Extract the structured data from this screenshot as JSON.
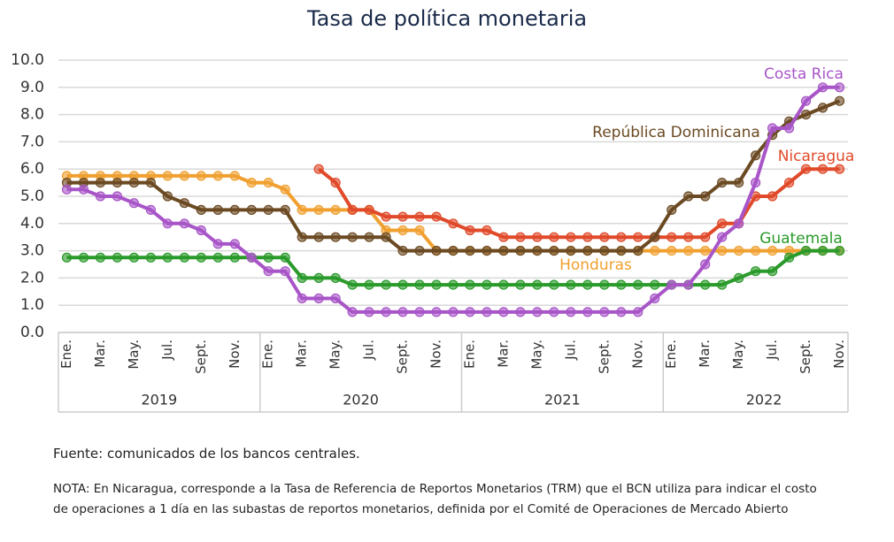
{
  "chart_data": {
    "type": "line",
    "title": "Tasa de política monetaria",
    "categories": [
      "Ene.",
      null,
      "Mar.",
      null,
      "May.",
      null,
      "Jul.",
      null,
      "Sept.",
      null,
      "Nov.",
      null,
      "Ene.",
      null,
      "Mar.",
      null,
      "May.",
      null,
      "Jul.",
      null,
      "Sept.",
      null,
      "Nov.",
      null,
      "Ene.",
      null,
      "Mar.",
      null,
      "May.",
      null,
      "Jul.",
      null,
      "Sept.",
      null,
      "Nov.",
      null,
      "Ene.",
      null,
      "Mar.",
      null,
      "May.",
      null,
      "Jul.",
      null,
      "Sept.",
      null,
      "Nov."
    ],
    "year_groups": [
      "2019",
      "2020",
      "2021",
      "2022"
    ],
    "ylim": [
      0,
      10
    ],
    "yticks": [
      {
        "value": 0,
        "label": "0.0"
      },
      {
        "value": 1,
        "label": "1.0"
      },
      {
        "value": 2,
        "label": "2.0"
      },
      {
        "value": 3,
        "label": "3.0"
      },
      {
        "value": 4,
        "label": "4.0"
      },
      {
        "value": 5,
        "label": "5.0"
      },
      {
        "value": 6,
        "label": "6.0"
      },
      {
        "value": 7,
        "label": "7.0"
      },
      {
        "value": 8,
        "label": "8.0"
      },
      {
        "value": 9,
        "label": "9.0"
      },
      {
        "value": 10,
        "label": "10.0"
      }
    ],
    "grid": true,
    "series": [
      {
        "name": "Honduras",
        "color": "#f0a030",
        "values": [
          5.75,
          5.75,
          5.75,
          5.75,
          5.75,
          5.75,
          5.75,
          5.75,
          5.75,
          5.75,
          5.75,
          5.5,
          5.5,
          5.25,
          4.5,
          4.5,
          4.5,
          4.5,
          4.5,
          3.75,
          3.75,
          3.75,
          3,
          3,
          3,
          3,
          3,
          3,
          3,
          3,
          3,
          3,
          3,
          3,
          3,
          3,
          3,
          3,
          3,
          3,
          3,
          3,
          3,
          3,
          3,
          3,
          3
        ]
      },
      {
        "name": "Nicaragua",
        "color": "#e04a2a",
        "values": [
          null,
          null,
          null,
          null,
          null,
          null,
          null,
          null,
          null,
          null,
          null,
          null,
          null,
          null,
          null,
          6,
          5.5,
          4.5,
          4.5,
          4.25,
          4.25,
          4.25,
          4.25,
          4,
          3.75,
          3.75,
          3.5,
          3.5,
          3.5,
          3.5,
          3.5,
          3.5,
          3.5,
          3.5,
          3.5,
          3.5,
          3.5,
          3.5,
          3.5,
          4,
          4,
          5,
          5,
          5.5,
          6,
          6,
          6
        ]
      },
      {
        "name": "República Dominicana",
        "color": "#6b4a23",
        "values": [
          5.5,
          5.5,
          5.5,
          5.5,
          5.5,
          5.5,
          5,
          4.75,
          4.5,
          4.5,
          4.5,
          4.5,
          4.5,
          4.5,
          3.5,
          3.5,
          3.5,
          3.5,
          3.5,
          3.5,
          3,
          3,
          3,
          3,
          3,
          3,
          3,
          3,
          3,
          3,
          3,
          3,
          3,
          3,
          3,
          3.5,
          4.5,
          5,
          5,
          5.5,
          5.5,
          6.5,
          7.25,
          7.75,
          8,
          8.25,
          8.5
        ]
      },
      {
        "name": "Guatemala",
        "color": "#2a9a2a",
        "values": [
          2.75,
          2.75,
          2.75,
          2.75,
          2.75,
          2.75,
          2.75,
          2.75,
          2.75,
          2.75,
          2.75,
          2.75,
          2.75,
          2.75,
          2,
          2,
          2,
          1.75,
          1.75,
          1.75,
          1.75,
          1.75,
          1.75,
          1.75,
          1.75,
          1.75,
          1.75,
          1.75,
          1.75,
          1.75,
          1.75,
          1.75,
          1.75,
          1.75,
          1.75,
          1.75,
          1.75,
          1.75,
          1.75,
          1.75,
          2,
          2.25,
          2.25,
          2.75,
          3,
          3,
          3
        ]
      },
      {
        "name": "Costa Rica",
        "color": "#a855c8",
        "values": [
          5.25,
          5.25,
          5,
          5,
          4.75,
          4.5,
          4,
          4,
          3.75,
          3.25,
          3.25,
          2.75,
          2.25,
          2.25,
          1.25,
          1.25,
          1.25,
          0.75,
          0.75,
          0.75,
          0.75,
          0.75,
          0.75,
          0.75,
          0.75,
          0.75,
          0.75,
          0.75,
          0.75,
          0.75,
          0.75,
          0.75,
          0.75,
          0.75,
          0.75,
          1.25,
          1.75,
          1.75,
          2.5,
          3.5,
          4,
          5.5,
          7.5,
          7.5,
          8.5,
          9,
          9
        ]
      }
    ],
    "source": "Fuente: comunicados de los bancos centrales.",
    "note": "NOTA: En Nicaragua, corresponde a la Tasa de Referencia de Reportos Monetarios (TRM) que el BCN utiliza para indicar el costo de operaciones a 1 día en las subastas de reportos monetarios, definida por el Comité de Operaciones de Mercado Abierto"
  }
}
